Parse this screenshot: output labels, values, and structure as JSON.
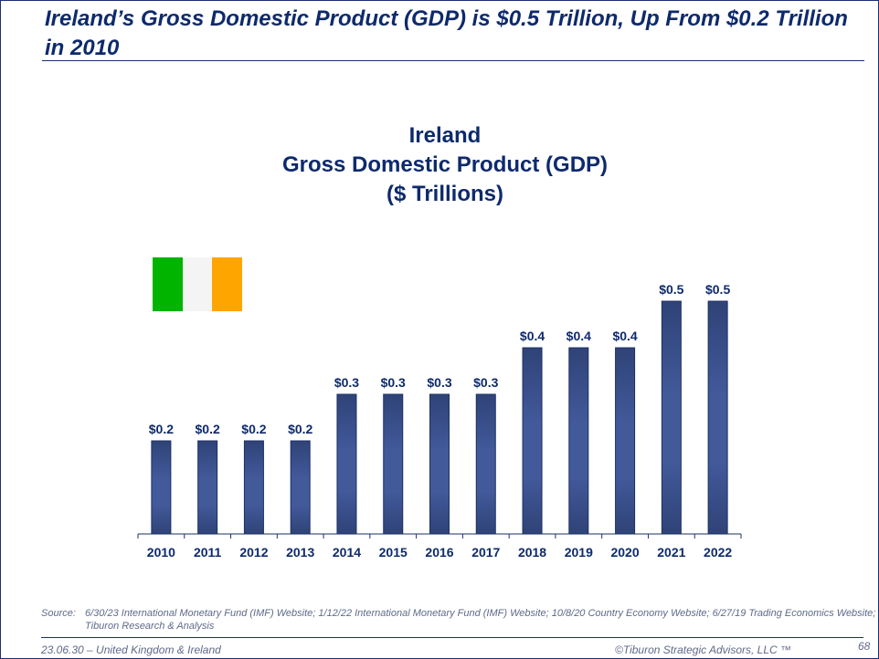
{
  "header": {
    "title": "Ireland’s Gross Domestic Product (GDP) is $0.5 Trillion, Up From $0.2 Trillion in 2010"
  },
  "chart_title": {
    "line1": "Ireland",
    "line2": "Gross Domestic Product (GDP)",
    "line3": "($ Trillions)"
  },
  "flag": {
    "colors": [
      "#00b400",
      "#f4f4f4",
      "#ffa500"
    ]
  },
  "chart_data": {
    "type": "bar",
    "title": "Ireland Gross Domestic Product (GDP) ($ Trillions)",
    "categories": [
      "2010",
      "2011",
      "2012",
      "2013",
      "2014",
      "2015",
      "2016",
      "2017",
      "2018",
      "2019",
      "2020",
      "2021",
      "2022"
    ],
    "values": [
      0.2,
      0.2,
      0.2,
      0.2,
      0.3,
      0.3,
      0.3,
      0.3,
      0.4,
      0.4,
      0.4,
      0.5,
      0.5
    ],
    "data_labels": [
      "$0.2",
      "$0.2",
      "$0.2",
      "$0.2",
      "$0.3",
      "$0.3",
      "$0.3",
      "$0.3",
      "$0.4",
      "$0.4",
      "$0.4",
      "$0.5",
      "$0.5"
    ],
    "xlabel": "",
    "ylabel": "",
    "ylim": [
      0,
      0.6
    ],
    "grid": false,
    "bar_color": "#3b5595",
    "label_color": "#0e2a6c"
  },
  "source": {
    "label": "Source:",
    "text": "6/30/23 International Monetary Fund (IMF) Website; 1/12/22 International Monetary Fund (IMF) Website; 10/8/20 Country Economy Website; 6/27/19 Trading Economics Website; Tiburon Research & Analysis"
  },
  "footer": {
    "left": "23.06.30 – United Kingdom & Ireland",
    "right": "©Tiburon Strategic Advisors, LLC ™",
    "page": "68"
  }
}
